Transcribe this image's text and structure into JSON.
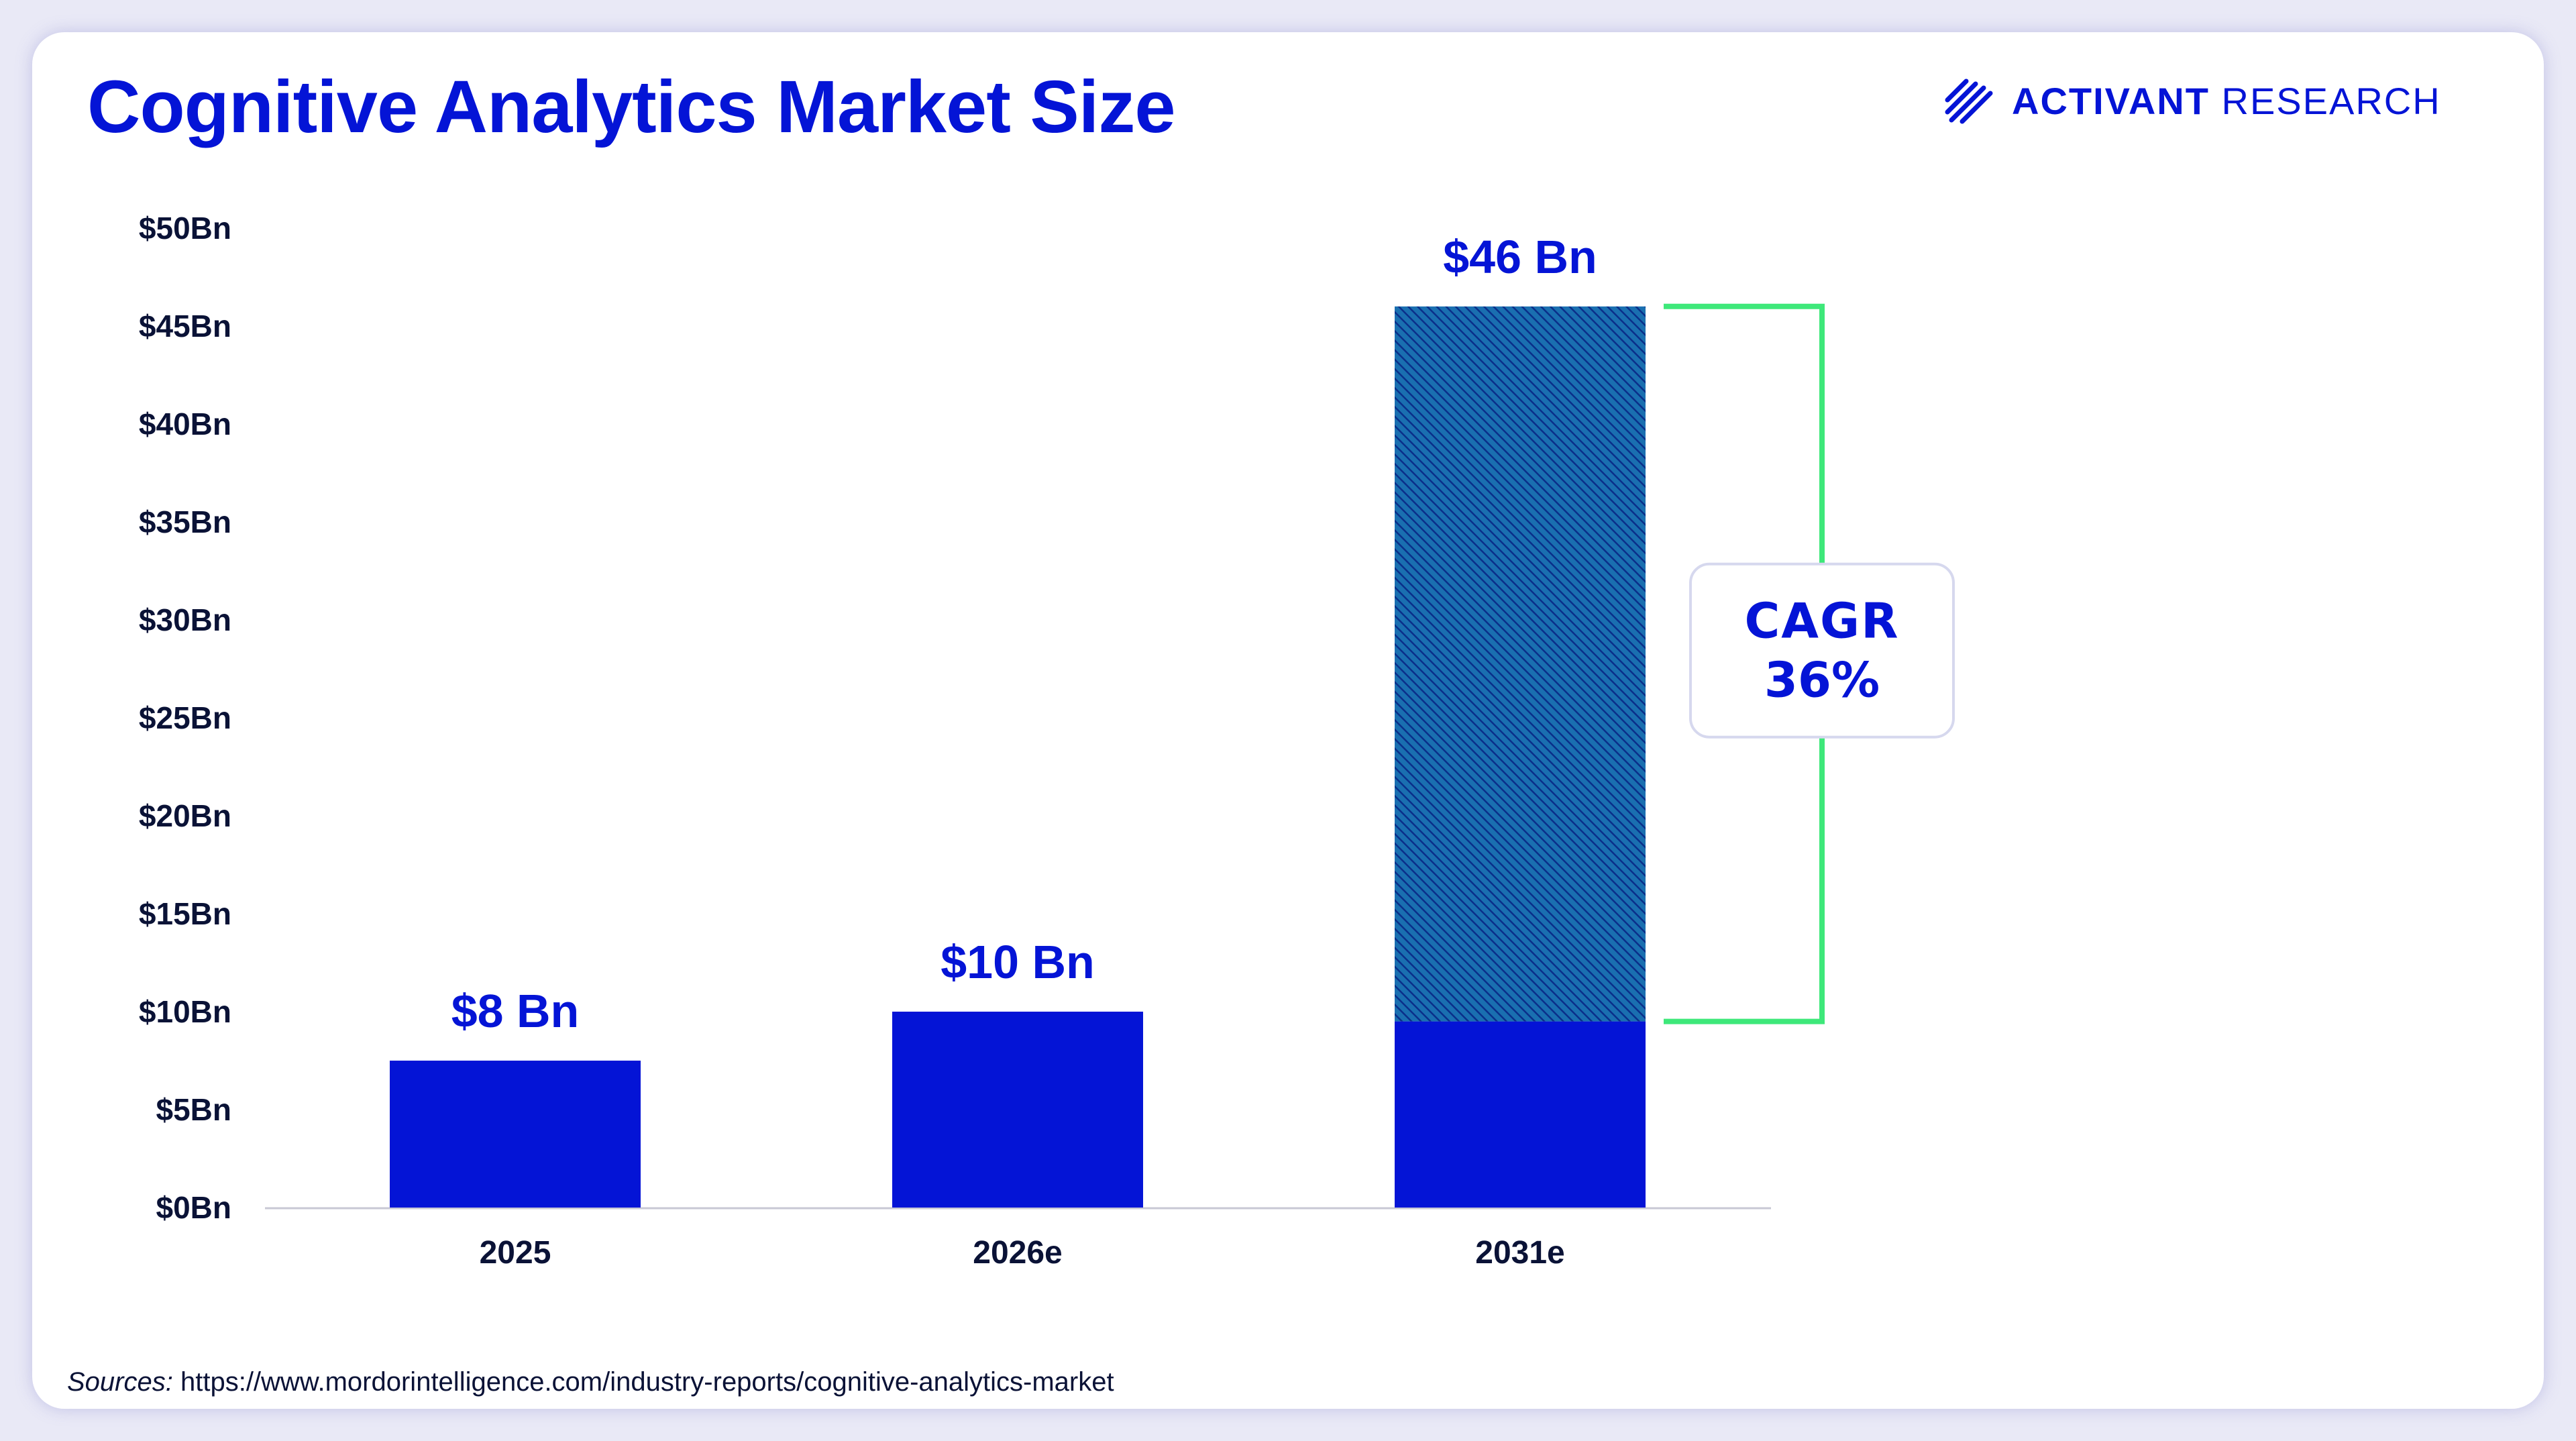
{
  "page": {
    "brand_strong": "ACTIVANT",
    "brand_light": "RESEARCH",
    "sources_label": "Sources:",
    "sources_url": "https://www.mordorintelligence.com/industry-reports/cognitive-analytics-market",
    "colors": {
      "bar": "#0414d6",
      "bracket": "#3ee87a",
      "text": "#0a1236",
      "hatch": "#1a6fb0"
    }
  },
  "chart_data": {
    "type": "bar",
    "title": "Cognitive Analytics Market Size",
    "xlabel": "",
    "ylabel": "",
    "ylim": [
      0,
      50
    ],
    "grid": false,
    "y_ticks": [
      {
        "value": 0,
        "label": "$0Bn"
      },
      {
        "value": 5,
        "label": "$5Bn"
      },
      {
        "value": 10,
        "label": "$10Bn"
      },
      {
        "value": 15,
        "label": "$15Bn"
      },
      {
        "value": 20,
        "label": "$20Bn"
      },
      {
        "value": 25,
        "label": "$25Bn"
      },
      {
        "value": 30,
        "label": "$30Bn"
      },
      {
        "value": 35,
        "label": "$35Bn"
      },
      {
        "value": 40,
        "label": "$40Bn"
      },
      {
        "value": 45,
        "label": "$45Bn"
      },
      {
        "value": 50,
        "label": "$50Bn"
      }
    ],
    "categories": [
      "2025",
      "2026e",
      "2031e"
    ],
    "values": [
      7.5,
      10,
      46
    ],
    "data_labels": [
      "$8 Bn",
      "$10 Bn",
      "$46 Bn"
    ],
    "stacked_segments": [
      {
        "category": "2031e",
        "base_value": 9.5,
        "pattern": "hatched",
        "description": "growth above base"
      }
    ],
    "annotation": {
      "type": "bracket",
      "category": "2031e",
      "from_value": 9.5,
      "to_value": 46,
      "line1": "CAGR",
      "line2": "36%"
    }
  }
}
